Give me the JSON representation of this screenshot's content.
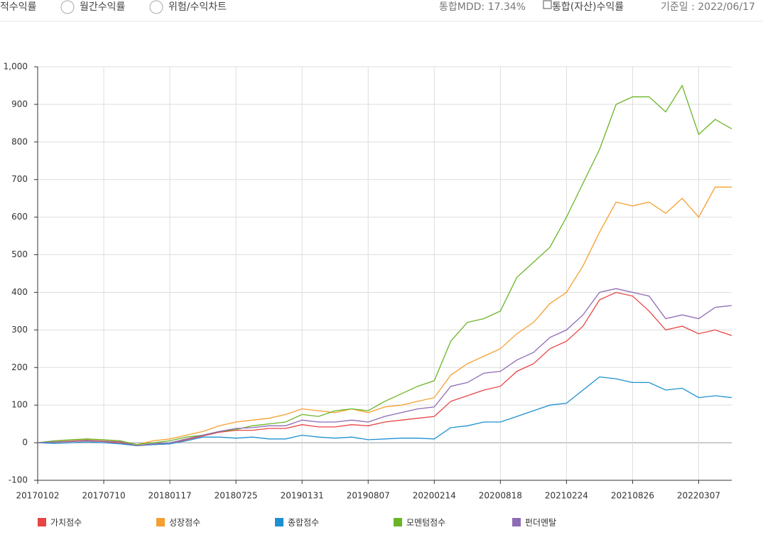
{
  "header": {
    "tab_current": "적수익률",
    "radio_monthly": "월간수익률",
    "radio_risk": "위험/수익차트",
    "mdd": "통합MDD: 17.34%",
    "checkbox_total": "통합(자산)수익률",
    "base_date": "기준일 : 2022/06/17"
  },
  "chart_data": {
    "type": "line",
    "categories": [
      "20170102",
      null,
      null,
      null,
      "20170710",
      null,
      null,
      null,
      "20180117",
      null,
      null,
      null,
      "20180725",
      null,
      null,
      null,
      "20190131",
      null,
      null,
      null,
      "20190807",
      null,
      null,
      null,
      "20200214",
      null,
      null,
      null,
      "20200818",
      null,
      null,
      null,
      "20210224",
      null,
      null,
      null,
      "20210826",
      null,
      null,
      null,
      "20220307",
      null,
      null
    ],
    "series": [
      {
        "name": "가치점수",
        "color": "#e84545",
        "values": [
          0,
          2,
          3,
          5,
          3,
          0,
          -8,
          -5,
          -3,
          8,
          18,
          28,
          33,
          33,
          38,
          38,
          48,
          42,
          42,
          48,
          45,
          55,
          60,
          65,
          70,
          110,
          125,
          140,
          150,
          190,
          210,
          250,
          270,
          310,
          380,
          400,
          390,
          350,
          300,
          310,
          290,
          300,
          285
        ]
      },
      {
        "name": "성장점수",
        "color": "#f5a030",
        "values": [
          0,
          3,
          5,
          8,
          5,
          3,
          -5,
          5,
          10,
          20,
          30,
          45,
          55,
          60,
          65,
          75,
          90,
          85,
          80,
          90,
          80,
          95,
          100,
          110,
          120,
          180,
          210,
          230,
          250,
          290,
          320,
          370,
          400,
          470,
          560,
          640,
          630,
          640,
          610,
          650,
          600,
          680,
          680
        ]
      },
      {
        "name": "종합점수",
        "color": "#1e90d0",
        "values": [
          0,
          -2,
          0,
          2,
          0,
          -3,
          -8,
          -5,
          -3,
          5,
          15,
          15,
          12,
          15,
          10,
          10,
          20,
          15,
          12,
          15,
          8,
          10,
          12,
          12,
          10,
          40,
          45,
          55,
          55,
          70,
          85,
          100,
          105,
          140,
          175,
          170,
          160,
          160,
          140,
          145,
          120,
          125,
          120
        ]
      },
      {
        "name": "모멘텀점수",
        "color": "#6ab526",
        "values": [
          0,
          5,
          8,
          10,
          8,
          5,
          -5,
          0,
          5,
          15,
          20,
          30,
          35,
          45,
          50,
          55,
          75,
          70,
          85,
          90,
          85,
          110,
          130,
          150,
          165,
          270,
          320,
          330,
          350,
          440,
          480,
          520,
          600,
          690,
          780,
          900,
          920,
          920,
          880,
          950,
          820,
          860,
          835
        ]
      },
      {
        "name": "펀더멘탈",
        "color": "#8e6bb5",
        "values": [
          0,
          2,
          4,
          6,
          4,
          2,
          -8,
          -3,
          0,
          10,
          20,
          30,
          38,
          40,
          45,
          45,
          60,
          55,
          55,
          60,
          55,
          70,
          80,
          90,
          95,
          150,
          160,
          185,
          190,
          220,
          240,
          280,
          300,
          340,
          400,
          410,
          400,
          390,
          330,
          340,
          330,
          360,
          365
        ]
      }
    ],
    "ylim": [
      -100,
      1000
    ],
    "yticks": [
      -100,
      0,
      100,
      200,
      300,
      400,
      500,
      600,
      700,
      800,
      900,
      {
        "value": 1000,
        "label": "1,000"
      }
    ],
    "grid": true
  }
}
